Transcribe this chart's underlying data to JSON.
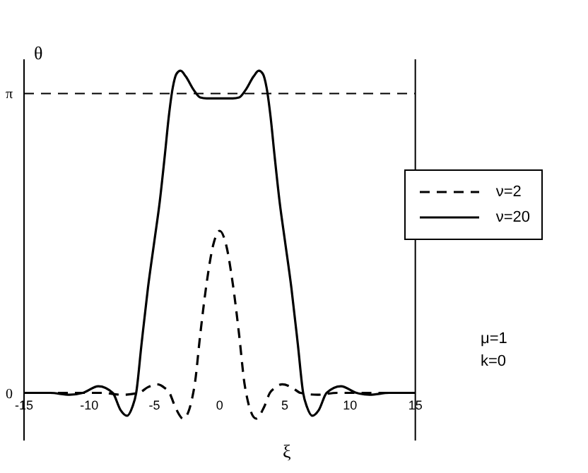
{
  "chart_data": {
    "type": "line",
    "xlabel": "ξ",
    "ylabel": "θ",
    "xlim": [
      -15,
      15
    ],
    "xticks": [
      -15,
      -10,
      -5,
      0,
      5,
      10,
      15
    ],
    "ylim": [
      -0.5,
      3.5
    ],
    "yticks": [
      {
        "value": 0,
        "label": "0"
      },
      {
        "value": 3.14159,
        "label": "π"
      }
    ],
    "legend": "right",
    "marker": "none",
    "ref_lines": [
      {
        "axis": "y",
        "value": 3.14159,
        "label": null,
        "line_style": "dashed",
        "color": "#000000"
      }
    ],
    "annotations": [
      "μ=1",
      "k=0"
    ],
    "series": [
      {
        "name": "ν=2",
        "color": "#000000",
        "line_style": "dashed",
        "x": [
          -15,
          -9,
          -7.5,
          -6.2,
          -5.5,
          -4.8,
          -4.2,
          -3.85,
          -3.4,
          -2.8,
          -2.4,
          -2.1,
          -1.9,
          -1.5,
          -1,
          -0.5,
          0,
          0.5,
          1,
          1.5,
          1.9,
          2.1,
          2.4,
          2.8,
          3.4,
          3.85,
          4.2,
          4.8,
          5.5,
          6.2,
          7.5,
          9,
          15
        ],
        "values": [
          0,
          0,
          -0.02,
          0,
          0.06,
          0.09,
          0.05,
          0,
          -0.15,
          -0.27,
          -0.2,
          -0.05,
          0.1,
          0.6,
          1.15,
          1.55,
          1.7,
          1.55,
          1.15,
          0.6,
          0.1,
          -0.05,
          -0.2,
          -0.27,
          -0.15,
          0,
          0.05,
          0.09,
          0.06,
          0,
          -0.02,
          0,
          0
        ]
      },
      {
        "name": "ν=20",
        "color": "#000000",
        "line_style": "solid",
        "x": [
          -15,
          -13,
          -11.5,
          -10.5,
          -9.3,
          -8.2,
          -7.6,
          -7.1,
          -6.7,
          -6.4,
          -6,
          -5.5,
          -5,
          -4.6,
          -4.2,
          -3.9,
          -3.6,
          -3.3,
          -3,
          -2.6,
          -2,
          -1.5,
          -1,
          0,
          1,
          1.5,
          2,
          2.6,
          3,
          3.3,
          3.6,
          3.9,
          4.2,
          4.6,
          5,
          5.5,
          6,
          6.4,
          6.7,
          7.1,
          7.6,
          8.2,
          9.3,
          10.5,
          11.5,
          13,
          15
        ],
        "values": [
          0,
          0,
          -0.02,
          0,
          0.07,
          0,
          -0.18,
          -0.24,
          -0.15,
          0,
          0.5,
          1.1,
          1.6,
          2.0,
          2.5,
          2.9,
          3.2,
          3.35,
          3.38,
          3.32,
          3.18,
          3.1,
          3.09,
          3.09,
          3.09,
          3.1,
          3.18,
          3.32,
          3.38,
          3.35,
          3.2,
          2.9,
          2.5,
          2.0,
          1.6,
          1.1,
          0.5,
          0,
          -0.15,
          -0.24,
          -0.18,
          0,
          0.07,
          0,
          -0.02,
          0,
          0
        ]
      }
    ]
  }
}
